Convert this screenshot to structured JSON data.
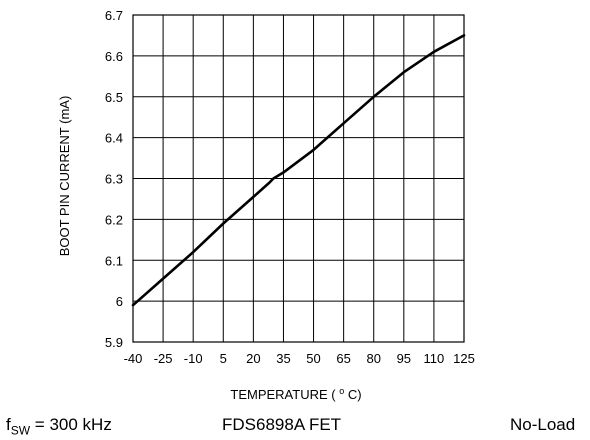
{
  "chart_data": {
    "type": "line",
    "title": "",
    "xlabel": "TEMPERATURE",
    "xlabel_unit": "°C",
    "ylabel": "BOOT PIN CURRENT (mA)",
    "xlim": [
      -40,
      125
    ],
    "ylim": [
      5.9,
      6.7
    ],
    "x_ticks": [
      -40,
      -25,
      -10,
      5,
      20,
      35,
      50,
      65,
      80,
      95,
      110,
      125
    ],
    "x_tick_labels": [
      "-40",
      "-25",
      "-10",
      "5",
      "20",
      "35",
      "50",
      "65",
      "80",
      "95",
      "110",
      "125"
    ],
    "y_ticks": [
      5.9,
      6.0,
      6.1,
      6.2,
      6.3,
      6.4,
      6.5,
      6.6,
      6.7
    ],
    "y_tick_labels": [
      "5.9",
      "6",
      "6.1",
      "6.2",
      "6.3",
      "6.4",
      "6.5",
      "6.6",
      "6.7"
    ],
    "grid": true,
    "legend": "none",
    "series": [
      {
        "x": [
          -40,
          -25,
          -10,
          5,
          20,
          28,
          30,
          35,
          50,
          65,
          80,
          95,
          110,
          125
        ],
        "y": [
          5.99,
          6.055,
          6.12,
          6.19,
          6.255,
          6.29,
          6.3,
          6.315,
          6.37,
          6.435,
          6.5,
          6.56,
          6.61,
          6.65
        ]
      }
    ],
    "line_color": "#000000",
    "grid_color": "#000000"
  },
  "footer": {
    "conditions": {
      "fsw_symbol": "f",
      "fsw_subscript": "SW",
      "fsw_value": " = 300 kHz",
      "fet": "FDS6898A FET",
      "load": "No-Load"
    }
  }
}
